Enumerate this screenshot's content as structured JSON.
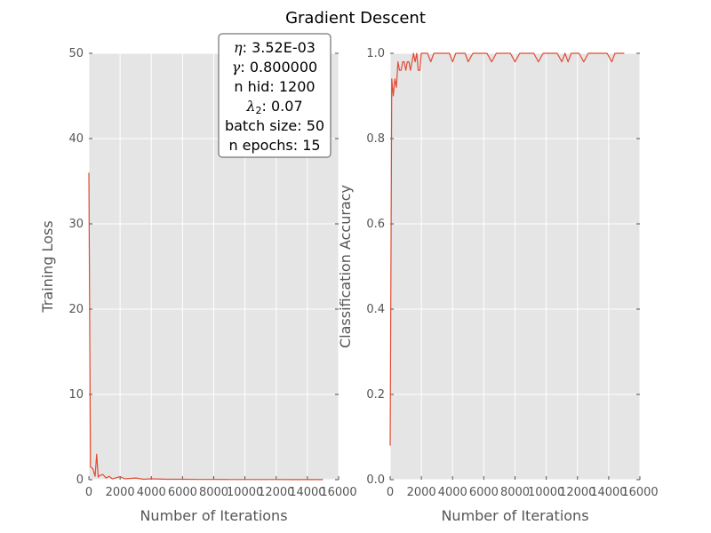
{
  "chart_data": {
    "title": "Gradient Descent",
    "info_box": {
      "lines": [
        {
          "symbol": "η",
          "sub": "",
          "text": ": 3.52E-03"
        },
        {
          "symbol": "γ",
          "sub": "",
          "text": ": 0.800000"
        },
        {
          "symbol": "",
          "sub": "",
          "text": "n hid: 1200"
        },
        {
          "symbol": "λ",
          "sub": "2",
          "text": ": 0.07"
        },
        {
          "symbol": "",
          "sub": "",
          "text": "batch size: 50"
        },
        {
          "symbol": "",
          "sub": "",
          "text": "n epochs: 15"
        }
      ]
    },
    "series_color": "#e24a33",
    "background_color": "#e5e5e5",
    "grid_color": "#ffffff",
    "subplots": [
      {
        "type": "line",
        "xlabel": "Number of Iterations",
        "ylabel": "Training Loss",
        "xlim": [
          0,
          16000
        ],
        "ylim": [
          0,
          50
        ],
        "xticks": [
          0,
          2000,
          4000,
          6000,
          8000,
          10000,
          12000,
          14000,
          16000
        ],
        "xtick_labels": [
          "0",
          "2000",
          "4000",
          "6000",
          "8000",
          "10000",
          "12000",
          "14000",
          "16000"
        ],
        "yticks": [
          0,
          10,
          20,
          30,
          40,
          50
        ],
        "ytick_labels": [
          "0",
          "10",
          "20",
          "30",
          "40",
          "50"
        ],
        "grid": true,
        "x": [
          0,
          100,
          250,
          400,
          500,
          600,
          700,
          900,
          1100,
          1300,
          1500,
          1700,
          2000,
          2300,
          2600,
          3000,
          3500,
          4000,
          5000,
          6000,
          7000,
          8000,
          9000,
          10000,
          11000,
          12000,
          13000,
          14000,
          15000
        ],
        "y": [
          36,
          1.5,
          1.3,
          0.4,
          3.0,
          0.3,
          0.5,
          0.6,
          0.2,
          0.4,
          0.1,
          0.2,
          0.35,
          0.1,
          0.15,
          0.2,
          0.05,
          0.1,
          0.05,
          0.05,
          0.03,
          0.03,
          0.02,
          0.02,
          0.02,
          0.02,
          0.01,
          0.01,
          0.01
        ]
      },
      {
        "type": "line",
        "xlabel": "Number of Iterations",
        "ylabel": "Classification Accuracy",
        "xlim": [
          0,
          16000
        ],
        "ylim": [
          0,
          1.0
        ],
        "xticks": [
          0,
          2000,
          4000,
          6000,
          8000,
          10000,
          12000,
          14000,
          16000
        ],
        "xtick_labels": [
          "0",
          "2000",
          "4000",
          "6000",
          "8000",
          "10000",
          "12000",
          "14000",
          "16000"
        ],
        "yticks": [
          0,
          0.2,
          0.4,
          0.6,
          0.8,
          1.0
        ],
        "ytick_labels": [
          "0.0",
          "0.2",
          "0.4",
          "0.6",
          "0.8",
          "1.0"
        ],
        "grid": true,
        "x": [
          0,
          100,
          200,
          300,
          400,
          500,
          600,
          700,
          800,
          900,
          1000,
          1100,
          1200,
          1300,
          1400,
          1500,
          1600,
          1700,
          1800,
          1900,
          2000,
          2200,
          2400,
          2600,
          2800,
          3000,
          3200,
          3500,
          3800,
          4000,
          4200,
          4500,
          4800,
          5000,
          5300,
          5600,
          5900,
          6200,
          6500,
          6800,
          7100,
          7400,
          7700,
          8000,
          8300,
          8600,
          8900,
          9200,
          9500,
          9800,
          10100,
          10400,
          10700,
          11000,
          11200,
          11400,
          11600,
          11800,
          12100,
          12400,
          12700,
          13000,
          13300,
          13600,
          13900,
          14200,
          14400,
          14600,
          14900,
          15000
        ],
        "y": [
          0.08,
          0.94,
          0.9,
          0.94,
          0.92,
          0.98,
          0.96,
          0.96,
          0.98,
          0.98,
          0.96,
          0.98,
          0.98,
          0.96,
          0.98,
          1.0,
          0.98,
          1.0,
          0.96,
          0.96,
          1.0,
          1.0,
          1.0,
          0.98,
          1.0,
          1.0,
          1.0,
          1.0,
          1.0,
          0.98,
          1.0,
          1.0,
          1.0,
          0.98,
          1.0,
          1.0,
          1.0,
          1.0,
          0.98,
          1.0,
          1.0,
          1.0,
          1.0,
          0.98,
          1.0,
          1.0,
          1.0,
          1.0,
          0.98,
          1.0,
          1.0,
          1.0,
          1.0,
          0.98,
          1.0,
          0.98,
          1.0,
          1.0,
          1.0,
          0.98,
          1.0,
          1.0,
          1.0,
          1.0,
          1.0,
          0.98,
          1.0,
          1.0,
          1.0,
          1.0
        ]
      }
    ]
  }
}
